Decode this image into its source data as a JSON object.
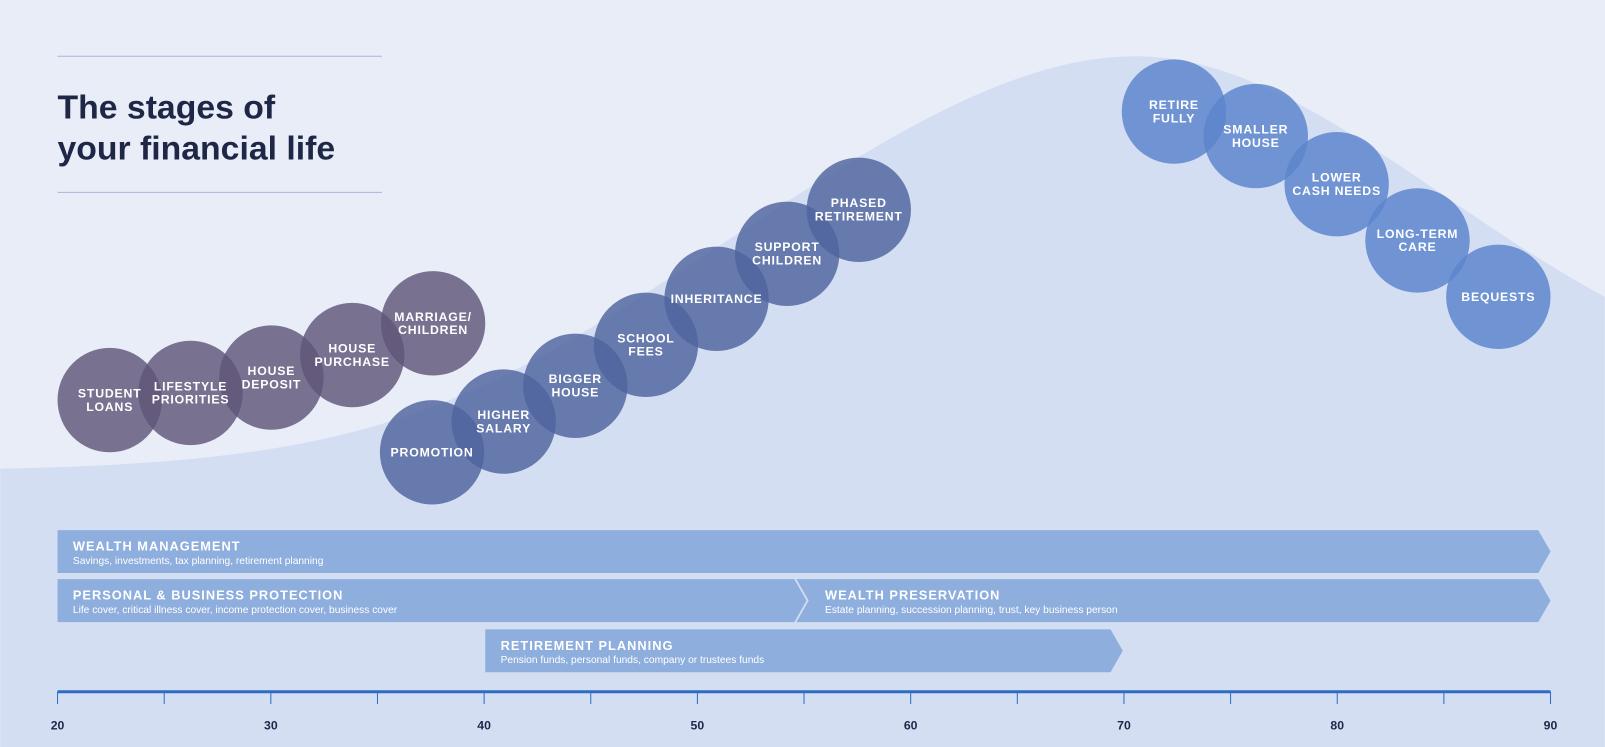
{
  "header": {
    "title": [
      "The stages of",
      "your financial life"
    ]
  },
  "stages": [
    {
      "lines": [
        "STUDENT",
        "LOANS"
      ]
    },
    {
      "lines": [
        "LIFESTYLE",
        "PRIORITIES"
      ]
    },
    {
      "lines": [
        "HOUSE",
        "DEPOSIT"
      ]
    },
    {
      "lines": [
        "HOUSE",
        "PURCHASE"
      ]
    },
    {
      "lines": [
        "MARRIAGE/",
        "CHILDREN"
      ]
    },
    {
      "lines": [
        "PROMOTION"
      ]
    },
    {
      "lines": [
        "HIGHER",
        "SALARY"
      ]
    },
    {
      "lines": [
        "BIGGER",
        "HOUSE"
      ]
    },
    {
      "lines": [
        "SCHOOL",
        "FEES"
      ]
    },
    {
      "lines": [
        "INHERITANCE"
      ]
    },
    {
      "lines": [
        "SUPPORT",
        "CHILDREN"
      ]
    },
    {
      "lines": [
        "PHASED",
        "RETIREMENT"
      ]
    },
    {
      "lines": [
        "RETIRE",
        "FULLY"
      ]
    },
    {
      "lines": [
        "SMALLER",
        "HOUSE"
      ]
    },
    {
      "lines": [
        "LOWER",
        "CASH NEEDS"
      ]
    },
    {
      "lines": [
        "LONG-TERM",
        "CARE"
      ]
    },
    {
      "lines": [
        "BEQUESTS"
      ]
    }
  ],
  "bands": [
    {
      "title": "WEALTH MANAGEMENT",
      "subtitle": "Savings, investments, tax planning, retirement planning"
    },
    {
      "title": "PERSONAL & BUSINESS PROTECTION",
      "subtitle": "Life cover, critical illness cover, income protection cover, business cover"
    },
    {
      "title": "WEALTH PRESERVATION",
      "subtitle": "Estate planning, succession planning, trust, key business person"
    },
    {
      "title": "RETIREMENT PLANNING",
      "subtitle": "Pension funds, personal funds, company or trustees funds"
    }
  ],
  "axis": {
    "labels": [
      "20",
      "30",
      "40",
      "50",
      "60",
      "70",
      "80",
      "90"
    ]
  }
}
